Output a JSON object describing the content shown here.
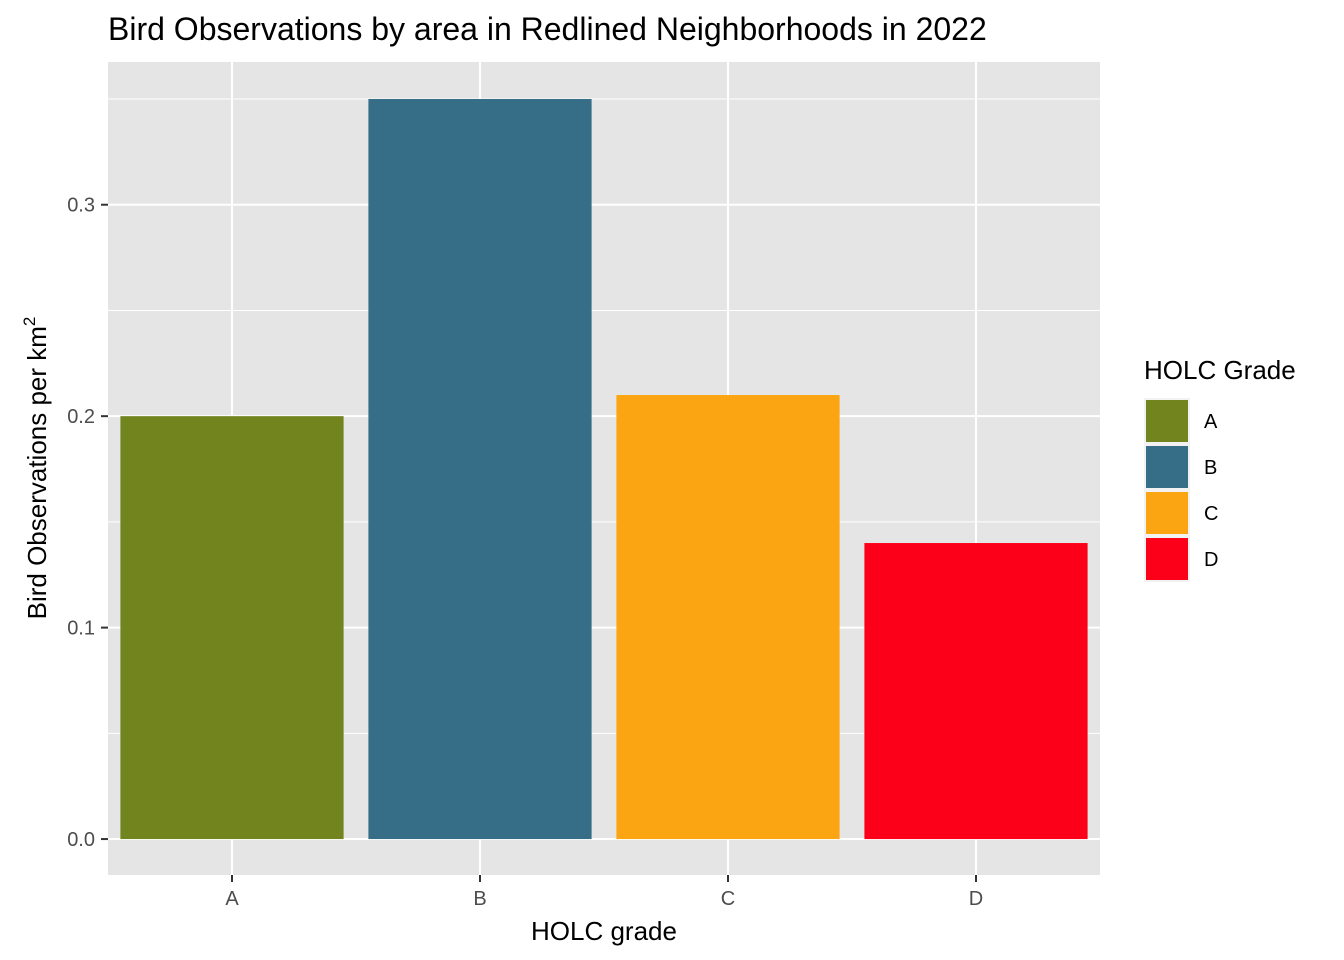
{
  "chart_data": {
    "type": "bar",
    "title": "Bird Observations by area in Redlined Neighborhoods in 2022",
    "xlabel": "HOLC grade",
    "ylabel_main": "Bird Observations per km",
    "ylabel_sup": "2",
    "categories": [
      "A",
      "B",
      "C",
      "D"
    ],
    "values": [
      0.2,
      0.35,
      0.21,
      0.14
    ],
    "colors": [
      "#72841e",
      "#366d87",
      "#fca512",
      "#fc0019"
    ],
    "ylim": [
      -0.017,
      0.3675
    ],
    "yticks": [
      0.0,
      0.1,
      0.2,
      0.3
    ],
    "ytick_labels": [
      "0.0",
      "0.1",
      "0.2",
      "0.3"
    ],
    "grid": true,
    "panel_background": "#e5e5e5",
    "legend": {
      "title": "HOLC Grade",
      "placement": "right",
      "entries": [
        "A",
        "B",
        "C",
        "D"
      ]
    }
  }
}
